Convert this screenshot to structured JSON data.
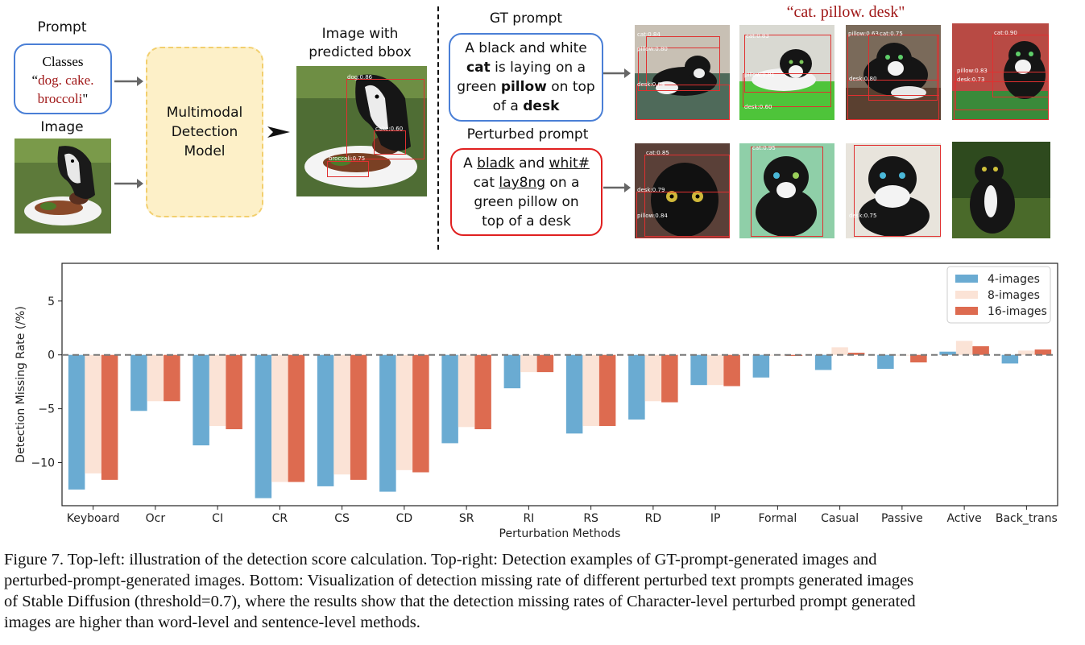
{
  "pipeline": {
    "prompt_title": "Prompt",
    "classes_label": "Classes",
    "classes_open": "“",
    "classes_line1": "dog. cake.",
    "classes_line2": "broccoli",
    "classes_close": "\"",
    "image_title": "Image",
    "model_label": "Multimodal Detection Model",
    "output_title": "Image with predicted bbox",
    "detections": [
      {
        "label": "dog:0.86"
      },
      {
        "label": "cake:0.60"
      },
      {
        "label": "broccoli:0.75"
      }
    ]
  },
  "examples": {
    "gt_title": "GT prompt",
    "gt_prompt_parts": [
      "A black and white",
      "cat",
      " is laying on a",
      "green",
      "pillow",
      " on top",
      "of a",
      "desk"
    ],
    "perturbed_title": "Perturbed prompt",
    "perturbed_parts": [
      "A",
      "bladk",
      "and",
      "whit#",
      "cat",
      "lay8ng",
      "on a",
      "green pillow on",
      "top of a desk"
    ],
    "grid_title": "“cat. pillow. desk\"",
    "gt_detections": [
      [
        "cat:0.84",
        "pillow:0.80",
        "desk:0.84"
      ],
      [
        "cat:0.83",
        "pillow:0.81",
        "desk:0.60"
      ],
      [
        "pillow:0.63",
        "cat:0.75",
        "desk:0.80"
      ],
      [
        "cat:0.90",
        "pillow:0.83",
        "desk:0.73"
      ]
    ],
    "perturbed_detections": [
      [
        "cat:0.85",
        "desk:0.79",
        "pillow:0.84"
      ],
      [
        "cat:0.95"
      ],
      [
        "desk:0.75"
      ],
      []
    ]
  },
  "chart_data": {
    "type": "bar",
    "xlabel": "Perturbation Methods",
    "ylabel": "Detection Missing Rate (/%)",
    "ylim": [
      -14,
      8.5
    ],
    "yticks": [
      5,
      0,
      -5,
      -10
    ],
    "reference_line": 0,
    "legend_position": "top-right",
    "categories": [
      "Keyboard",
      "Ocr",
      "CI",
      "CR",
      "CS",
      "CD",
      "SR",
      "RI",
      "RS",
      "RD",
      "IP",
      "Formal",
      "Casual",
      "Passive",
      "Active",
      "Back_trans"
    ],
    "series": [
      {
        "name": "4-images",
        "color": "#6aabd2",
        "values": [
          -12.5,
          -5.2,
          -8.4,
          -13.3,
          -12.2,
          -12.7,
          -8.2,
          -3.1,
          -7.3,
          -6.0,
          -2.8,
          -2.1,
          -1.4,
          -1.3,
          0.3,
          -0.8
        ]
      },
      {
        "name": "8-images",
        "color": "#fbe3d6",
        "values": [
          -11.0,
          -4.3,
          -6.6,
          -11.8,
          -11.1,
          -10.7,
          -6.7,
          -1.6,
          -6.6,
          -4.3,
          -2.8,
          0.0,
          0.7,
          0.0,
          1.3,
          0.4
        ]
      },
      {
        "name": "16-images",
        "color": "#dd6b50",
        "values": [
          -11.6,
          -4.3,
          -6.9,
          -11.8,
          -11.6,
          -10.9,
          -6.9,
          -1.6,
          -6.6,
          -4.4,
          -2.9,
          -0.1,
          0.2,
          -0.7,
          0.8,
          0.5
        ]
      }
    ]
  },
  "caption": {
    "lines": [
      "Figure 7.  Top-left: illustration of the detection score calculation.  Top-right:  Detection examples of GT-prompt-generated images and",
      "perturbed-prompt-generated images. Bottom: Visualization of detection missing rate of different perturbed text prompts generated images",
      "of Stable Diffusion (threshold=0.7), where the results show that the detection missing rates of Character-level perturbed prompt generated",
      "images are higher than word-level and sentence-level methods."
    ]
  },
  "colors": {
    "blue_border": "#4a7fd6",
    "red_border": "#e02020",
    "model_box": "#fdf0c8",
    "bbox": "#e03030",
    "grid_title": "#a01818"
  }
}
